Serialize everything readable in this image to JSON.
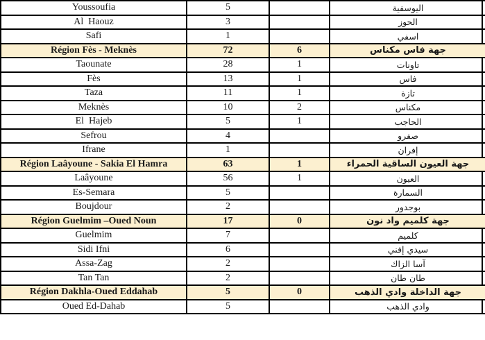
{
  "table": {
    "description_colors": {
      "region_row_highlight_hex": "#FCF0D0",
      "grid_line_hex": "#000000",
      "text_hex": "#1A1A1A"
    },
    "rows": [
      {
        "name_fr": "Youssoufia",
        "count_primary": "5",
        "count_secondary": "",
        "name_ar": "اليوسفية",
        "is_region_header": false
      },
      {
        "name_fr": "Al  Haouz",
        "count_primary": "3",
        "count_secondary": "",
        "name_ar": "الحوز",
        "is_region_header": false
      },
      {
        "name_fr": "Safi",
        "count_primary": "1",
        "count_secondary": "",
        "name_ar": "اسفي",
        "is_region_header": false
      },
      {
        "name_fr": "Région Fès - Meknès",
        "count_primary": "72",
        "count_secondary": "6",
        "name_ar": "جهة فاس مكناس",
        "is_region_header": true
      },
      {
        "name_fr": "Taounate",
        "count_primary": "28",
        "count_secondary": "1",
        "name_ar": "تاونات",
        "is_region_header": false
      },
      {
        "name_fr": "Fès",
        "count_primary": "13",
        "count_secondary": "1",
        "name_ar": "فاس",
        "is_region_header": false
      },
      {
        "name_fr": "Taza",
        "count_primary": "11",
        "count_secondary": "1",
        "name_ar": "تازة",
        "is_region_header": false
      },
      {
        "name_fr": "Meknès",
        "count_primary": "10",
        "count_secondary": "2",
        "name_ar": "مكناس",
        "is_region_header": false
      },
      {
        "name_fr": "El  Hajeb",
        "count_primary": "5",
        "count_secondary": "1",
        "name_ar": "الحاجب",
        "is_region_header": false
      },
      {
        "name_fr": "Sefrou",
        "count_primary": "4",
        "count_secondary": "",
        "name_ar": "صفرو",
        "is_region_header": false
      },
      {
        "name_fr": "Ifrane",
        "count_primary": "1",
        "count_secondary": "",
        "name_ar": "إفران",
        "is_region_header": false
      },
      {
        "name_fr": "Région Laâyoune - Sakia El Hamra",
        "count_primary": "63",
        "count_secondary": "1",
        "name_ar": "جهة العيون الساقية الحمراء",
        "is_region_header": true
      },
      {
        "name_fr": "Laâyoune",
        "count_primary": "56",
        "count_secondary": "1",
        "name_ar": "العيون",
        "is_region_header": false
      },
      {
        "name_fr": "Es-Semara",
        "count_primary": "5",
        "count_secondary": "",
        "name_ar": "السمارة",
        "is_region_header": false
      },
      {
        "name_fr": "Boujdour",
        "count_primary": "2",
        "count_secondary": "",
        "name_ar": "بوجدور",
        "is_region_header": false
      },
      {
        "name_fr": "Région Guelmim –Oued Noun",
        "count_primary": "17",
        "count_secondary": "0",
        "name_ar": "جهة كلميم واد نون",
        "is_region_header": true
      },
      {
        "name_fr": "Guelmim",
        "count_primary": "7",
        "count_secondary": "",
        "name_ar": "كلميم",
        "is_region_header": false
      },
      {
        "name_fr": "Sidi Ifni",
        "count_primary": "6",
        "count_secondary": "",
        "name_ar": "سيدي إفني",
        "is_region_header": false
      },
      {
        "name_fr": "Assa-Zag",
        "count_primary": "2",
        "count_secondary": "",
        "name_ar": "آسا الزاك",
        "is_region_header": false
      },
      {
        "name_fr": "Tan Tan",
        "count_primary": "2",
        "count_secondary": "",
        "name_ar": "طان طان",
        "is_region_header": false
      },
      {
        "name_fr": "Région Dakhla-Oued Eddahab",
        "count_primary": "5",
        "count_secondary": "0",
        "name_ar": "جهة الداخلة وادي الذهب",
        "is_region_header": true
      },
      {
        "name_fr": "Oued Ed-Dahab",
        "count_primary": "5",
        "count_secondary": "",
        "name_ar": "وادي الذهب",
        "is_region_header": false
      }
    ]
  }
}
